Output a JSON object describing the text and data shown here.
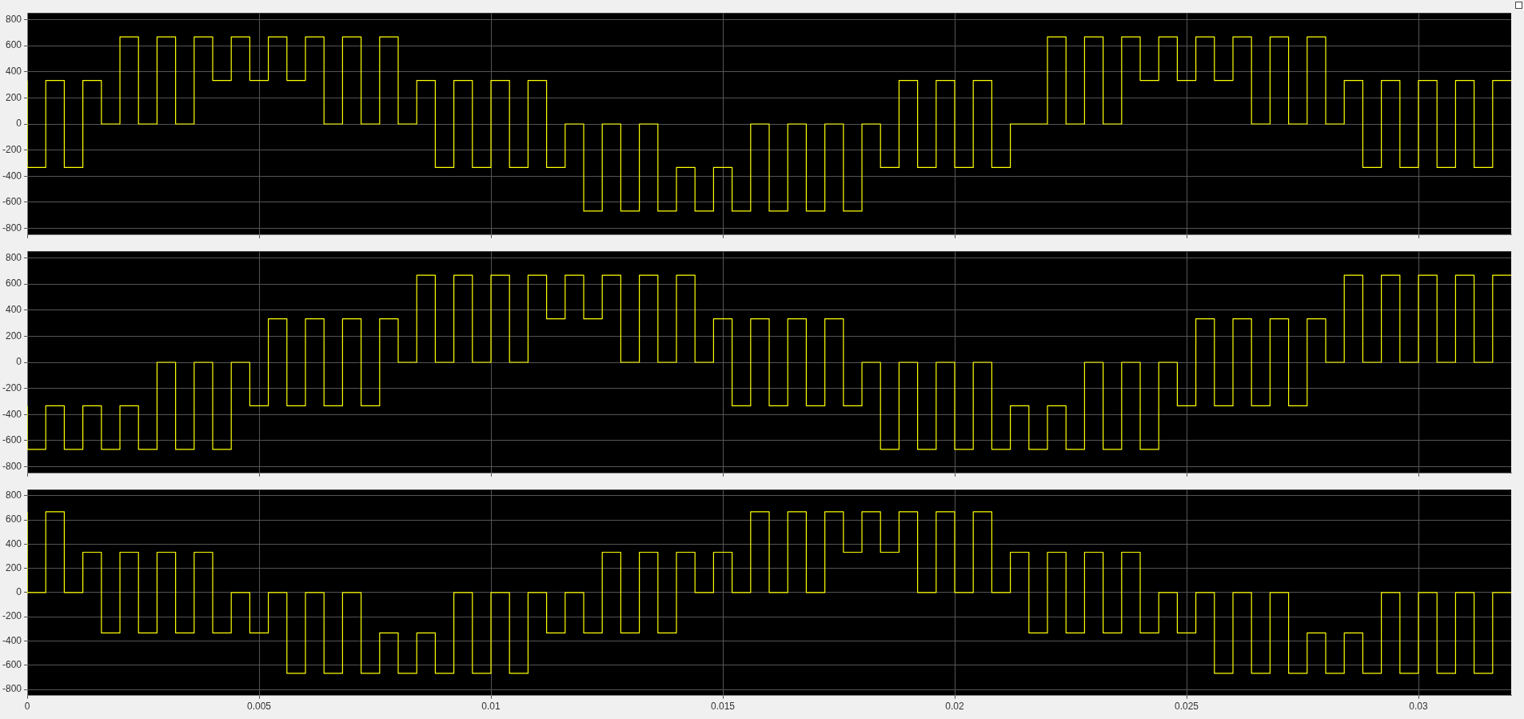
{
  "chart_data": [
    {
      "type": "step",
      "color": "#ffff00",
      "grid": true,
      "tick_labels": "y",
      "xlim": [
        0,
        0.032
      ],
      "ylim": [
        -850,
        850
      ],
      "xticks": [
        0,
        0.005,
        0.01,
        0.015,
        0.02,
        0.025,
        0.03
      ],
      "yticks": [
        -800,
        -600,
        -400,
        -200,
        0,
        200,
        400,
        600,
        800
      ],
      "x": [
        0,
        0.0004,
        0.0008,
        0.0012,
        0.0016,
        0.002,
        0.0024,
        0.0028,
        0.0032,
        0.0036,
        0.004,
        0.0044,
        0.0048,
        0.0052,
        0.0056,
        0.006,
        0.0064,
        0.0068,
        0.0072,
        0.0076,
        0.008,
        0.0084,
        0.0088,
        0.0092,
        0.0096,
        0.01,
        0.0104,
        0.0108,
        0.0112,
        0.0116,
        0.012,
        0.0124,
        0.0128,
        0.0132,
        0.0136,
        0.014,
        0.0144,
        0.0148,
        0.0152,
        0.0156,
        0.016,
        0.0164,
        0.0168,
        0.0172,
        0.0176,
        0.018,
        0.0184,
        0.0188,
        0.0192,
        0.0196,
        0.02,
        0.0204,
        0.0208,
        0.0212,
        0.0216,
        0.022,
        0.0224,
        0.0228,
        0.0232,
        0.0236,
        0.024,
        0.0244,
        0.0248,
        0.0252,
        0.0256,
        0.026,
        0.0264,
        0.0268,
        0.0272,
        0.0276,
        0.028,
        0.0284,
        0.0288,
        0.0292,
        0.0296,
        0.03,
        0.0304,
        0.0308,
        0.0312,
        0.0316,
        0.032
      ],
      "values": [
        333,
        -333,
        333,
        -333,
        333,
        0,
        667,
        0,
        667,
        0,
        667,
        333,
        667,
        333,
        667,
        333,
        667,
        0,
        667,
        0,
        667,
        0,
        333,
        -333,
        333,
        -333,
        333,
        -333,
        333,
        -333,
        0,
        -667,
        0,
        -667,
        0,
        -667,
        -333,
        -667,
        -333,
        -667,
        0,
        -667,
        0,
        -667,
        0,
        -667,
        0,
        -333,
        333,
        -333,
        333,
        -333,
        333,
        -333,
        0,
        0,
        667,
        0,
        667,
        0,
        667,
        333,
        667,
        333,
        667,
        333,
        667,
        0,
        667,
        0,
        667,
        0,
        333,
        -333,
        333,
        -333,
        333,
        -333,
        333,
        -333,
        333
      ]
    },
    {
      "type": "step",
      "color": "#ffff00",
      "grid": true,
      "tick_labels": "y",
      "xlim": [
        0,
        0.032
      ],
      "ylim": [
        -850,
        850
      ],
      "xticks": [
        0,
        0.005,
        0.01,
        0.015,
        0.02,
        0.025,
        0.03
      ],
      "yticks": [
        -800,
        -600,
        -400,
        -200,
        0,
        200,
        400,
        600,
        800
      ],
      "x": [
        0,
        0.0004,
        0.0008,
        0.0012,
        0.0016,
        0.002,
        0.0024,
        0.0028,
        0.0032,
        0.0036,
        0.004,
        0.0044,
        0.0048,
        0.0052,
        0.0056,
        0.006,
        0.0064,
        0.0068,
        0.0072,
        0.0076,
        0.008,
        0.0084,
        0.0088,
        0.0092,
        0.0096,
        0.01,
        0.0104,
        0.0108,
        0.0112,
        0.0116,
        0.012,
        0.0124,
        0.0128,
        0.0132,
        0.0136,
        0.014,
        0.0144,
        0.0148,
        0.0152,
        0.0156,
        0.016,
        0.0164,
        0.0168,
        0.0172,
        0.0176,
        0.018,
        0.0184,
        0.0188,
        0.0192,
        0.0196,
        0.02,
        0.0204,
        0.0208,
        0.0212,
        0.0216,
        0.022,
        0.0224,
        0.0228,
        0.0232,
        0.0236,
        0.024,
        0.0244,
        0.0248,
        0.0252,
        0.0256,
        0.026,
        0.0264,
        0.0268,
        0.0272,
        0.0276,
        0.028,
        0.0284,
        0.0288,
        0.0292,
        0.0296,
        0.03,
        0.0304,
        0.0308,
        0.0312,
        0.0316,
        0.032
      ],
      "values": [
        -333,
        -667,
        -333,
        -667,
        -333,
        -667,
        -333,
        -667,
        0,
        -667,
        0,
        -667,
        0,
        -333,
        333,
        -333,
        333,
        -333,
        333,
        -333,
        333,
        0,
        667,
        0,
        667,
        0,
        667,
        0,
        667,
        333,
        667,
        333,
        667,
        0,
        667,
        0,
        667,
        0,
        333,
        -333,
        333,
        -333,
        333,
        -333,
        333,
        -333,
        0,
        -667,
        0,
        -667,
        0,
        -667,
        0,
        -667,
        -333,
        -667,
        -333,
        -667,
        0,
        -667,
        0,
        -667,
        0,
        -333,
        333,
        -333,
        333,
        -333,
        333,
        -333,
        333,
        0,
        667,
        0,
        667,
        0,
        667,
        0,
        667,
        0,
        667
      ]
    },
    {
      "type": "step",
      "color": "#ffff00",
      "grid": true,
      "xlim": [
        0,
        0.032
      ],
      "ylim": [
        -850,
        850
      ],
      "xticks": [
        0,
        0.005,
        0.01,
        0.015,
        0.02,
        0.025,
        0.03
      ],
      "yticks": [
        -800,
        -600,
        -400,
        -200,
        0,
        200,
        400,
        600,
        800
      ],
      "x": [
        0,
        0.0004,
        0.0008,
        0.0012,
        0.0016,
        0.002,
        0.0024,
        0.0028,
        0.0032,
        0.0036,
        0.004,
        0.0044,
        0.0048,
        0.0052,
        0.0056,
        0.006,
        0.0064,
        0.0068,
        0.0072,
        0.0076,
        0.008,
        0.0084,
        0.0088,
        0.0092,
        0.0096,
        0.01,
        0.0104,
        0.0108,
        0.0112,
        0.0116,
        0.012,
        0.0124,
        0.0128,
        0.0132,
        0.0136,
        0.014,
        0.0144,
        0.0148,
        0.0152,
        0.0156,
        0.016,
        0.0164,
        0.0168,
        0.0172,
        0.0176,
        0.018,
        0.0184,
        0.0188,
        0.0192,
        0.0196,
        0.02,
        0.0204,
        0.0208,
        0.0212,
        0.0216,
        0.022,
        0.0224,
        0.0228,
        0.0232,
        0.0236,
        0.024,
        0.0244,
        0.0248,
        0.0252,
        0.0256,
        0.026,
        0.0264,
        0.0268,
        0.0272,
        0.0276,
        0.028,
        0.0284,
        0.0288,
        0.0292,
        0.0296,
        0.03,
        0.0304,
        0.0308,
        0.0312,
        0.0316,
        0.032
      ],
      "values": [
        667,
        0,
        667,
        0,
        333,
        -333,
        333,
        -333,
        333,
        -333,
        333,
        -333,
        0,
        -333,
        0,
        -667,
        0,
        -667,
        0,
        -667,
        -333,
        -667,
        -333,
        -667,
        0,
        -667,
        0,
        -667,
        0,
        -333,
        0,
        -333,
        333,
        -333,
        333,
        -333,
        333,
        0,
        333,
        0,
        667,
        0,
        667,
        0,
        667,
        333,
        667,
        333,
        667,
        0,
        667,
        0,
        667,
        0,
        333,
        -333,
        333,
        -333,
        333,
        -333,
        333,
        -333,
        0,
        -333,
        0,
        -667,
        0,
        -667,
        0,
        -667,
        -333,
        -667,
        -333,
        -667,
        0,
        -667,
        0,
        -667,
        0,
        -667,
        0
      ]
    }
  ]
}
